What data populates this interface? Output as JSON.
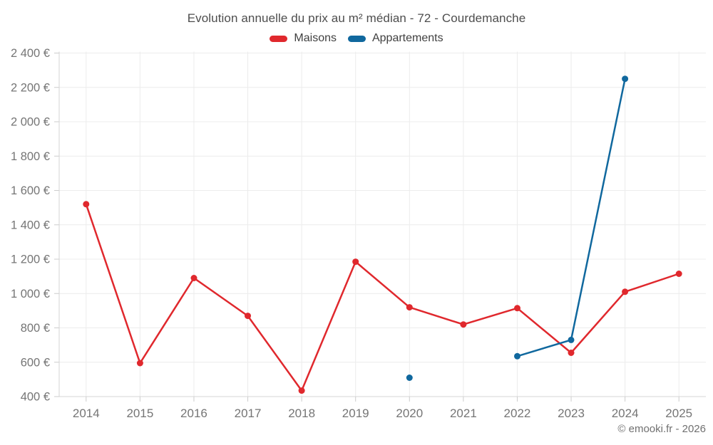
{
  "chart": {
    "title": "Evolution annuelle du prix au m² médian - 72 - Courdemanche",
    "footer": "© emooki.fr - 2026"
  },
  "legend": {
    "items": [
      {
        "label": "Maisons",
        "color": "#e0282d"
      },
      {
        "label": "Appartements",
        "color": "#10689e"
      }
    ]
  },
  "chart_data": {
    "type": "line",
    "title": "Evolution annuelle du prix au m² médian - 72 - Courdemanche",
    "categories": [
      "2014",
      "2015",
      "2016",
      "2017",
      "2018",
      "2019",
      "2020",
      "2021",
      "2022",
      "2023",
      "2024",
      "2025"
    ],
    "series": [
      {
        "name": "Maisons",
        "color": "#e0282d",
        "values": [
          1520,
          595,
          1090,
          870,
          435,
          1185,
          920,
          820,
          915,
          655,
          1010,
          1115
        ]
      },
      {
        "name": "Appartements",
        "color": "#10689e",
        "values": [
          null,
          null,
          null,
          null,
          null,
          null,
          510,
          null,
          635,
          730,
          2250,
          null
        ]
      }
    ],
    "xlabel": "",
    "ylabel": "",
    "ylim": [
      400,
      2400
    ],
    "ytick_step": 200,
    "yticks": [
      {
        "value": 400,
        "label": "400 €"
      },
      {
        "value": 600,
        "label": "600 €"
      },
      {
        "value": 800,
        "label": "800 €"
      },
      {
        "value": 1000,
        "label": "1 000 €"
      },
      {
        "value": 1200,
        "label": "1 200 €"
      },
      {
        "value": 1400,
        "label": "1 400 €"
      },
      {
        "value": 1600,
        "label": "1 600 €"
      },
      {
        "value": 1800,
        "label": "1 800 €"
      },
      {
        "value": 2000,
        "label": "2 000 €"
      },
      {
        "value": 2200,
        "label": "2 200 €"
      },
      {
        "value": 2400,
        "label": "2 400 €"
      }
    ],
    "grid": true,
    "legend_position": "top",
    "colors": {
      "gridline": "#ececec",
      "axis": "#d4d4d4",
      "tick": "#cccccc",
      "axis_label": "#757575",
      "title_text": "#4d4d4d",
      "background": "#ffffff"
    }
  }
}
